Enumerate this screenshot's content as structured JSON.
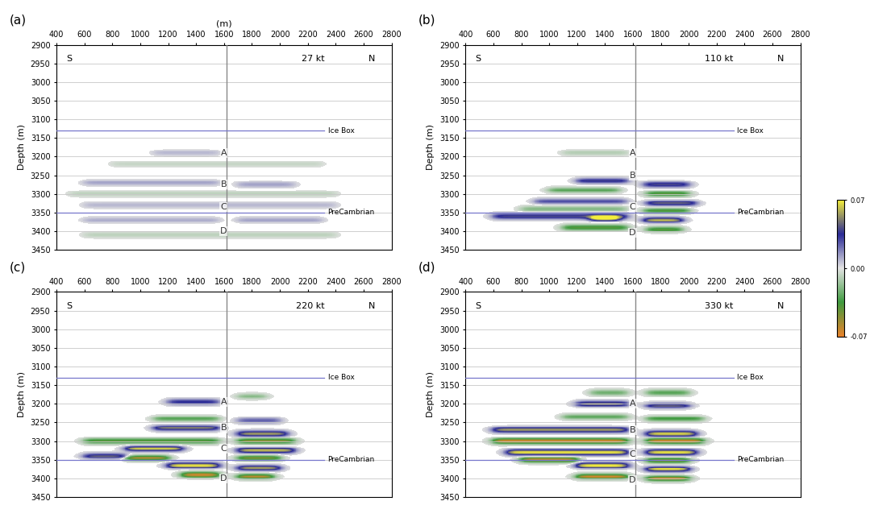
{
  "chart_data": [
    {
      "type": "heatmap",
      "panel_label": "(a)",
      "title": "27 kt",
      "left_label": "S",
      "right_label": "N",
      "xlabel": "(m)",
      "ylabel": "Depth (m)",
      "xlim": [
        400,
        2800
      ],
      "xticks": [
        400,
        600,
        800,
        1000,
        1200,
        1400,
        1600,
        1800,
        2000,
        2200,
        2400,
        2600,
        2800
      ],
      "ylim": [
        3450,
        2900
      ],
      "yticks": [
        2900,
        2950,
        3000,
        3050,
        3100,
        3150,
        3200,
        3250,
        3300,
        3350,
        3400,
        3450
      ],
      "grid": true,
      "well_x": 1620,
      "well_markers": [
        {
          "label": "A",
          "depth": 3190
        },
        {
          "label": "B",
          "depth": 3275
        },
        {
          "label": "C",
          "depth": 3335
        },
        {
          "label": "D",
          "depth": 3400
        }
      ],
      "horizons": [
        {
          "label": "Ice Box",
          "depth": 3130
        },
        {
          "label": "PreCambrian",
          "depth": 3350
        }
      ],
      "anomalies": [
        {
          "x": [
            1100,
            1560
          ],
          "depth": 3190,
          "value": 0.008
        },
        {
          "x": [
            800,
            2300
          ],
          "depth": 3220,
          "value": -0.006
        },
        {
          "x": [
            600,
            1560
          ],
          "depth": 3270,
          "value": 0.012
        },
        {
          "x": [
            1700,
            2100
          ],
          "depth": 3275,
          "value": 0.012
        },
        {
          "x": [
            500,
            2400
          ],
          "depth": 3300,
          "value": -0.008
        },
        {
          "x": [
            600,
            2400
          ],
          "depth": 3330,
          "value": 0.008
        },
        {
          "x": [
            600,
            1560
          ],
          "depth": 3370,
          "value": 0.01
        },
        {
          "x": [
            1700,
            2300
          ],
          "depth": 3370,
          "value": 0.012
        },
        {
          "x": [
            600,
            2400
          ],
          "depth": 3410,
          "value": -0.008
        }
      ]
    },
    {
      "type": "heatmap",
      "panel_label": "(b)",
      "title": "110 kt",
      "left_label": "S",
      "right_label": "N",
      "ylabel": "Depth (m)",
      "xlim": [
        400,
        2800
      ],
      "xticks": [
        400,
        600,
        800,
        1000,
        1200,
        1400,
        1600,
        1800,
        2000,
        2200,
        2400,
        2600,
        2800
      ],
      "ylim": [
        3450,
        2900
      ],
      "yticks": [
        2900,
        2950,
        3000,
        3050,
        3100,
        3150,
        3200,
        3250,
        3300,
        3350,
        3400,
        3450
      ],
      "grid": true,
      "well_x": 1620,
      "well_markers": [
        {
          "label": "A",
          "depth": 3190
        },
        {
          "label": "B",
          "depth": 3250
        },
        {
          "label": "C",
          "depth": 3335
        },
        {
          "label": "D",
          "depth": 3405
        }
      ],
      "horizons": [
        {
          "label": "Ice Box",
          "depth": 3130
        },
        {
          "label": "PreCambrian",
          "depth": 3350
        }
      ],
      "anomalies": [
        {
          "x": [
            1100,
            1560
          ],
          "depth": 3190,
          "value": -0.01
        },
        {
          "x": [
            1200,
            1560
          ],
          "depth": 3265,
          "value": 0.04
        },
        {
          "x": [
            1680,
            2000
          ],
          "depth": 3275,
          "value": 0.04
        },
        {
          "x": [
            1000,
            1500
          ],
          "depth": 3290,
          "value": -0.03
        },
        {
          "x": [
            1700,
            2000
          ],
          "depth": 3300,
          "value": -0.04
        },
        {
          "x": [
            900,
            1550
          ],
          "depth": 3320,
          "value": 0.03
        },
        {
          "x": [
            1700,
            2050
          ],
          "depth": 3325,
          "value": 0.045
        },
        {
          "x": [
            800,
            1550
          ],
          "depth": 3340,
          "value": -0.02
        },
        {
          "x": [
            1680,
            2000
          ],
          "depth": 3345,
          "value": -0.04
        },
        {
          "x": [
            600,
            1560
          ],
          "depth": 3360,
          "value": 0.04
        },
        {
          "x": [
            1300,
            1500
          ],
          "depth": 3365,
          "value": 0.065
        },
        {
          "x": [
            1680,
            1950
          ],
          "depth": 3370,
          "value": 0.06
        },
        {
          "x": [
            1100,
            1560
          ],
          "depth": 3390,
          "value": -0.04
        },
        {
          "x": [
            1700,
            1950
          ],
          "depth": 3395,
          "value": -0.04
        }
      ]
    },
    {
      "type": "heatmap",
      "panel_label": "(c)",
      "title": "220 kt",
      "left_label": "S",
      "right_label": "N",
      "ylabel": "Depth (m)",
      "xlim": [
        400,
        2800
      ],
      "xticks": [
        400,
        600,
        800,
        1000,
        1200,
        1400,
        1600,
        1800,
        2000,
        2200,
        2400,
        2600,
        2800
      ],
      "ylim": [
        3450,
        2900
      ],
      "yticks": [
        2900,
        2950,
        3000,
        3050,
        3100,
        3150,
        3200,
        3250,
        3300,
        3350,
        3400,
        3450
      ],
      "grid": true,
      "well_x": 1620,
      "well_markers": [
        {
          "label": "A",
          "depth": 3195
        },
        {
          "label": "B",
          "depth": 3265
        },
        {
          "label": "C",
          "depth": 3320
        },
        {
          "label": "D",
          "depth": 3400
        }
      ],
      "horizons": [
        {
          "label": "Ice Box",
          "depth": 3130
        },
        {
          "label": "PreCambrian",
          "depth": 3350
        }
      ],
      "anomalies": [
        {
          "x": [
            1200,
            1560
          ],
          "depth": 3195,
          "value": 0.035
        },
        {
          "x": [
            1700,
            1900
          ],
          "depth": 3180,
          "value": -0.02
        },
        {
          "x": [
            1100,
            1560
          ],
          "depth": 3240,
          "value": -0.03
        },
        {
          "x": [
            1700,
            2000
          ],
          "depth": 3245,
          "value": 0.025
        },
        {
          "x": [
            1100,
            1560
          ],
          "depth": 3265,
          "value": 0.05
        },
        {
          "x": [
            1700,
            2050
          ],
          "depth": 3280,
          "value": 0.055
        },
        {
          "x": [
            600,
            1560
          ],
          "depth": 3300,
          "value": -0.04
        },
        {
          "x": [
            1700,
            2100
          ],
          "depth": 3300,
          "value": -0.05
        },
        {
          "x": [
            900,
            1300
          ],
          "depth": 3320,
          "value": 0.065
        },
        {
          "x": [
            1700,
            2100
          ],
          "depth": 3325,
          "value": 0.06
        },
        {
          "x": [
            600,
            900
          ],
          "depth": 3340,
          "value": 0.045
        },
        {
          "x": [
            900,
            1200
          ],
          "depth": 3345,
          "value": -0.06
        },
        {
          "x": [
            1700,
            2000
          ],
          "depth": 3345,
          "value": -0.05
        },
        {
          "x": [
            1200,
            1560
          ],
          "depth": 3365,
          "value": 0.068
        },
        {
          "x": [
            1700,
            2000
          ],
          "depth": 3372,
          "value": 0.06
        },
        {
          "x": [
            1300,
            1560
          ],
          "depth": 3390,
          "value": -0.065
        },
        {
          "x": [
            1700,
            1950
          ],
          "depth": 3395,
          "value": -0.06
        }
      ]
    },
    {
      "type": "heatmap",
      "panel_label": "(d)",
      "title": "330 kt",
      "left_label": "S",
      "right_label": "N",
      "ylabel": "Depth (m)",
      "xlim": [
        400,
        2800
      ],
      "xticks": [
        400,
        600,
        800,
        1000,
        1200,
        1400,
        1600,
        1800,
        2000,
        2200,
        2400,
        2600,
        2800
      ],
      "ylim": [
        3450,
        2900
      ],
      "yticks": [
        2900,
        2950,
        3000,
        3050,
        3100,
        3150,
        3200,
        3250,
        3300,
        3350,
        3400,
        3450
      ],
      "grid": true,
      "well_x": 1620,
      "well_markers": [
        {
          "label": "A",
          "depth": 3200
        },
        {
          "label": "B",
          "depth": 3270
        },
        {
          "label": "C",
          "depth": 3335
        },
        {
          "label": "D",
          "depth": 3405
        }
      ],
      "horizons": [
        {
          "label": "Ice Box",
          "depth": 3130
        },
        {
          "label": "PreCambrian",
          "depth": 3350
        }
      ],
      "anomalies": [
        {
          "x": [
            1300,
            1560
          ],
          "depth": 3170,
          "value": -0.025
        },
        {
          "x": [
            1700,
            2000
          ],
          "depth": 3170,
          "value": -0.03
        },
        {
          "x": [
            1200,
            1560
          ],
          "depth": 3200,
          "value": 0.05
        },
        {
          "x": [
            1700,
            2000
          ],
          "depth": 3205,
          "value": 0.045
        },
        {
          "x": [
            1100,
            1560
          ],
          "depth": 3235,
          "value": -0.03
        },
        {
          "x": [
            1700,
            2100
          ],
          "depth": 3240,
          "value": -0.035
        },
        {
          "x": [
            600,
            1560
          ],
          "depth": 3270,
          "value": 0.055
        },
        {
          "x": [
            1700,
            2050
          ],
          "depth": 3280,
          "value": 0.065
        },
        {
          "x": [
            600,
            1560
          ],
          "depth": 3300,
          "value": -0.065
        },
        {
          "x": [
            1700,
            2100
          ],
          "depth": 3300,
          "value": -0.065
        },
        {
          "x": [
            700,
            1560
          ],
          "depth": 3330,
          "value": 0.068
        },
        {
          "x": [
            1700,
            2050
          ],
          "depth": 3330,
          "value": 0.068
        },
        {
          "x": [
            800,
            1200
          ],
          "depth": 3350,
          "value": -0.06
        },
        {
          "x": [
            1700,
            2000
          ],
          "depth": 3352,
          "value": -0.05
        },
        {
          "x": [
            1200,
            1560
          ],
          "depth": 3365,
          "value": 0.07
        },
        {
          "x": [
            1700,
            2000
          ],
          "depth": 3375,
          "value": 0.068
        },
        {
          "x": [
            1200,
            1560
          ],
          "depth": 3395,
          "value": -0.065
        },
        {
          "x": [
            1700,
            2000
          ],
          "depth": 3400,
          "value": -0.065
        }
      ]
    }
  ],
  "colorbar": {
    "range": [
      -0.07,
      0.07
    ],
    "ticks": [
      {
        "value": 0.07,
        "label": "0.07"
      },
      {
        "value": 0,
        "label": "0.00"
      },
      {
        "value": -0.07,
        "label": "-0.07"
      }
    ],
    "colors": [
      "#e8822a",
      "#3f9a3f",
      "#e2e2e2",
      "#2a2a96",
      "#f4ee3a"
    ]
  }
}
